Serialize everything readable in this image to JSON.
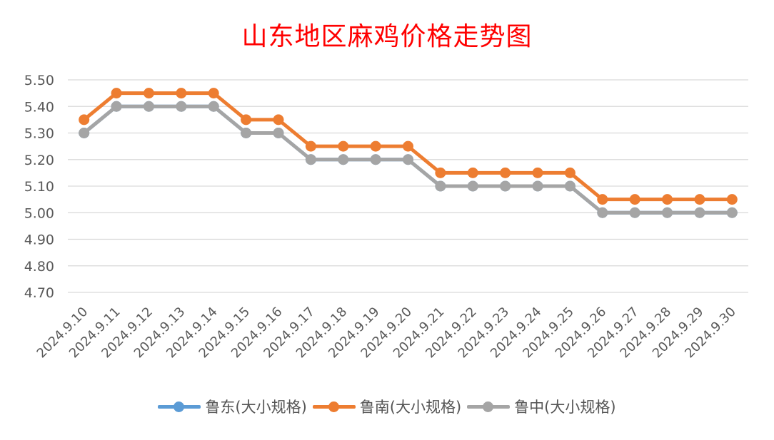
{
  "chart_data": {
    "type": "line",
    "title": "山东地区麻鸡价格走势图",
    "categories": [
      "2024.9.10",
      "2024.9.11",
      "2024.9.12",
      "2024.9.13",
      "2024.9.14",
      "2024.9.15",
      "2024.9.16",
      "2024.9.17",
      "2024.9.18",
      "2024.9.19",
      "2024.9.20",
      "2024.9.21",
      "2024.9.22",
      "2024.9.23",
      "2024.9.24",
      "2024.9.25",
      "2024.9.26",
      "2024.9.27",
      "2024.9.28",
      "2024.9.29",
      "2024.9.30"
    ],
    "yticks": [
      "4.70",
      "4.80",
      "4.90",
      "5.00",
      "5.10",
      "5.20",
      "5.30",
      "5.40",
      "5.50"
    ],
    "ylim": [
      4.7,
      5.5
    ],
    "grid": true,
    "legend_position": "bottom",
    "series": [
      {
        "name": "鲁东(大小规格)",
        "color": "#5b9bd5",
        "values": [
          5.3,
          5.4,
          5.4,
          5.4,
          5.4,
          5.3,
          5.3,
          5.2,
          5.2,
          5.2,
          5.2,
          5.1,
          5.1,
          5.1,
          5.1,
          5.1,
          5.0,
          5.0,
          5.0,
          5.0,
          5.0
        ]
      },
      {
        "name": "鲁南(大小规格)",
        "color": "#ed7d31",
        "values": [
          5.35,
          5.45,
          5.45,
          5.45,
          5.45,
          5.35,
          5.35,
          5.25,
          5.25,
          5.25,
          5.25,
          5.15,
          5.15,
          5.15,
          5.15,
          5.15,
          5.05,
          5.05,
          5.05,
          5.05,
          5.05
        ]
      },
      {
        "name": "鲁中(大小规格)",
        "color": "#a5a5a5",
        "values": [
          5.3,
          5.4,
          5.4,
          5.4,
          5.4,
          5.3,
          5.3,
          5.2,
          5.2,
          5.2,
          5.2,
          5.1,
          5.1,
          5.1,
          5.1,
          5.1,
          5.0,
          5.0,
          5.0,
          5.0,
          5.0
        ]
      }
    ]
  }
}
